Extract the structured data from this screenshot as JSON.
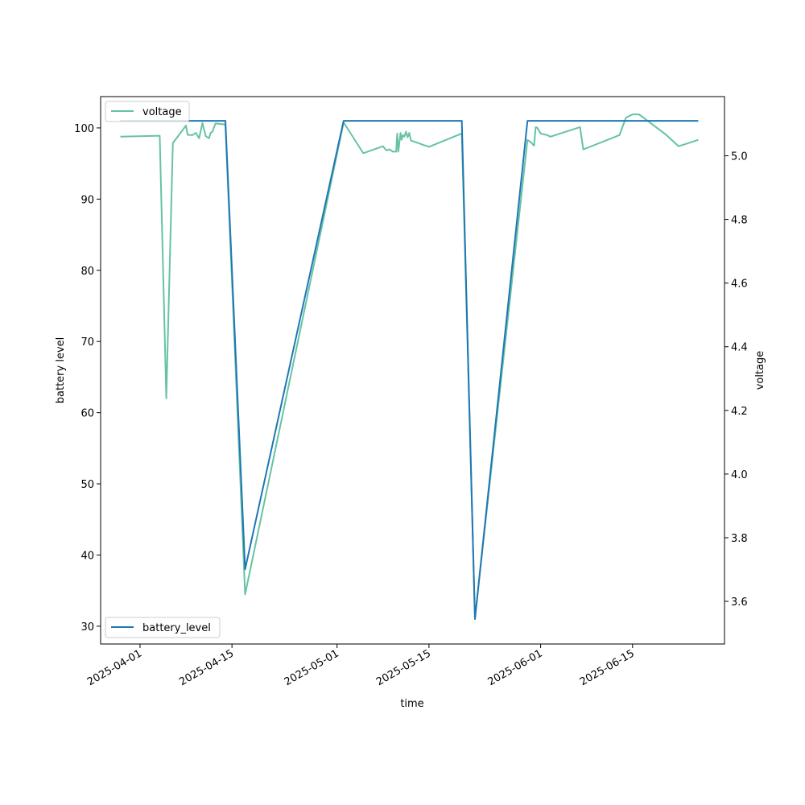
{
  "chart_data": {
    "type": "line",
    "xlabel": "time",
    "ylabel_left": "battery level",
    "ylabel_right": "voltage",
    "x_ticks": [
      "2025-04-01",
      "2025-04-15",
      "2025-05-01",
      "2025-05-15",
      "2025-06-01",
      "2025-06-15"
    ],
    "x_range": [
      "2025-03-26",
      "2025-06-29"
    ],
    "y_left_range": [
      27.5,
      104.4
    ],
    "y_left_ticks": [
      30,
      40,
      50,
      60,
      70,
      80,
      90,
      100
    ],
    "y_right_range": [
      3.466,
      5.186
    ],
    "y_right_ticks": [
      "3.6",
      "3.8",
      "4.0",
      "4.2",
      "4.4",
      "4.6",
      "4.8",
      "5.0"
    ],
    "legend_voltage_position": "upper-left",
    "legend_battery_position": "lower-left",
    "grid": false,
    "colors": {
      "battery_level": "#1f77b4",
      "voltage": "#66c2a5"
    },
    "series": [
      {
        "name": "battery_level",
        "axis": "left",
        "points": [
          [
            "2025-03-29",
            101
          ],
          [
            "2025-04-14",
            101
          ],
          [
            "2025-04-17",
            38
          ],
          [
            "2025-05-02",
            101
          ],
          [
            "2025-05-20",
            101
          ],
          [
            "2025-05-21",
            66
          ],
          [
            "2025-05-22",
            31
          ],
          [
            "2025-05-30",
            101
          ],
          [
            "2025-06-25",
            101
          ]
        ]
      },
      {
        "name": "voltage",
        "axis": "right",
        "points": [
          [
            "2025-03-29",
            5.06
          ],
          [
            "2025-04-04",
            5.063
          ],
          [
            "2025-04-05",
            4.238
          ],
          [
            "2025-04-06",
            5.04
          ],
          [
            "2025-04-08",
            5.095
          ],
          [
            "2025-04-08T06",
            5.066
          ],
          [
            "2025-04-09",
            5.065
          ],
          [
            "2025-04-09T12",
            5.072
          ],
          [
            "2025-04-10",
            5.055
          ],
          [
            "2025-04-10T12",
            5.103
          ],
          [
            "2025-04-11",
            5.062
          ],
          [
            "2025-04-11T12",
            5.055
          ],
          [
            "2025-04-11T18",
            5.072
          ],
          [
            "2025-04-12",
            5.075
          ],
          [
            "2025-04-12T12",
            5.102
          ],
          [
            "2025-04-14",
            5.098
          ],
          [
            "2025-04-17",
            3.622
          ],
          [
            "2025-05-02",
            5.105
          ],
          [
            "2025-05-05",
            5.008
          ],
          [
            "2025-05-08",
            5.03
          ],
          [
            "2025-05-08T12",
            5.017
          ],
          [
            "2025-05-09",
            5.02
          ],
          [
            "2025-05-09T12",
            5.013
          ],
          [
            "2025-05-10",
            5.013
          ],
          [
            "2025-05-10T04",
            5.07
          ],
          [
            "2025-05-10T08",
            5.013
          ],
          [
            "2025-05-10T16",
            5.072
          ],
          [
            "2025-05-10T20",
            5.05
          ],
          [
            "2025-05-11",
            5.065
          ],
          [
            "2025-05-11T06",
            5.06
          ],
          [
            "2025-05-11T12",
            5.076
          ],
          [
            "2025-05-11T18",
            5.058
          ],
          [
            "2025-05-12",
            5.072
          ],
          [
            "2025-05-12T06",
            5.048
          ],
          [
            "2025-05-15",
            5.028
          ],
          [
            "2025-05-20",
            5.07
          ],
          [
            "2025-05-22",
            3.548
          ],
          [
            "2025-05-30",
            5.05
          ],
          [
            "2025-05-30T12",
            5.043
          ],
          [
            "2025-05-31",
            5.032
          ],
          [
            "2025-05-31T06",
            5.09
          ],
          [
            "2025-05-31T12",
            5.088
          ],
          [
            "2025-06-01",
            5.07
          ],
          [
            "2025-06-02",
            5.065
          ],
          [
            "2025-06-02T12",
            5.06
          ],
          [
            "2025-06-07",
            5.09
          ],
          [
            "2025-06-07T12",
            5.02
          ],
          [
            "2025-06-13",
            5.065
          ],
          [
            "2025-06-14",
            5.12
          ],
          [
            "2025-06-15",
            5.13
          ],
          [
            "2025-06-16",
            5.13
          ],
          [
            "2025-06-20",
            5.068
          ],
          [
            "2025-06-22",
            5.03
          ],
          [
            "2025-06-25",
            5.05
          ]
        ]
      }
    ]
  }
}
